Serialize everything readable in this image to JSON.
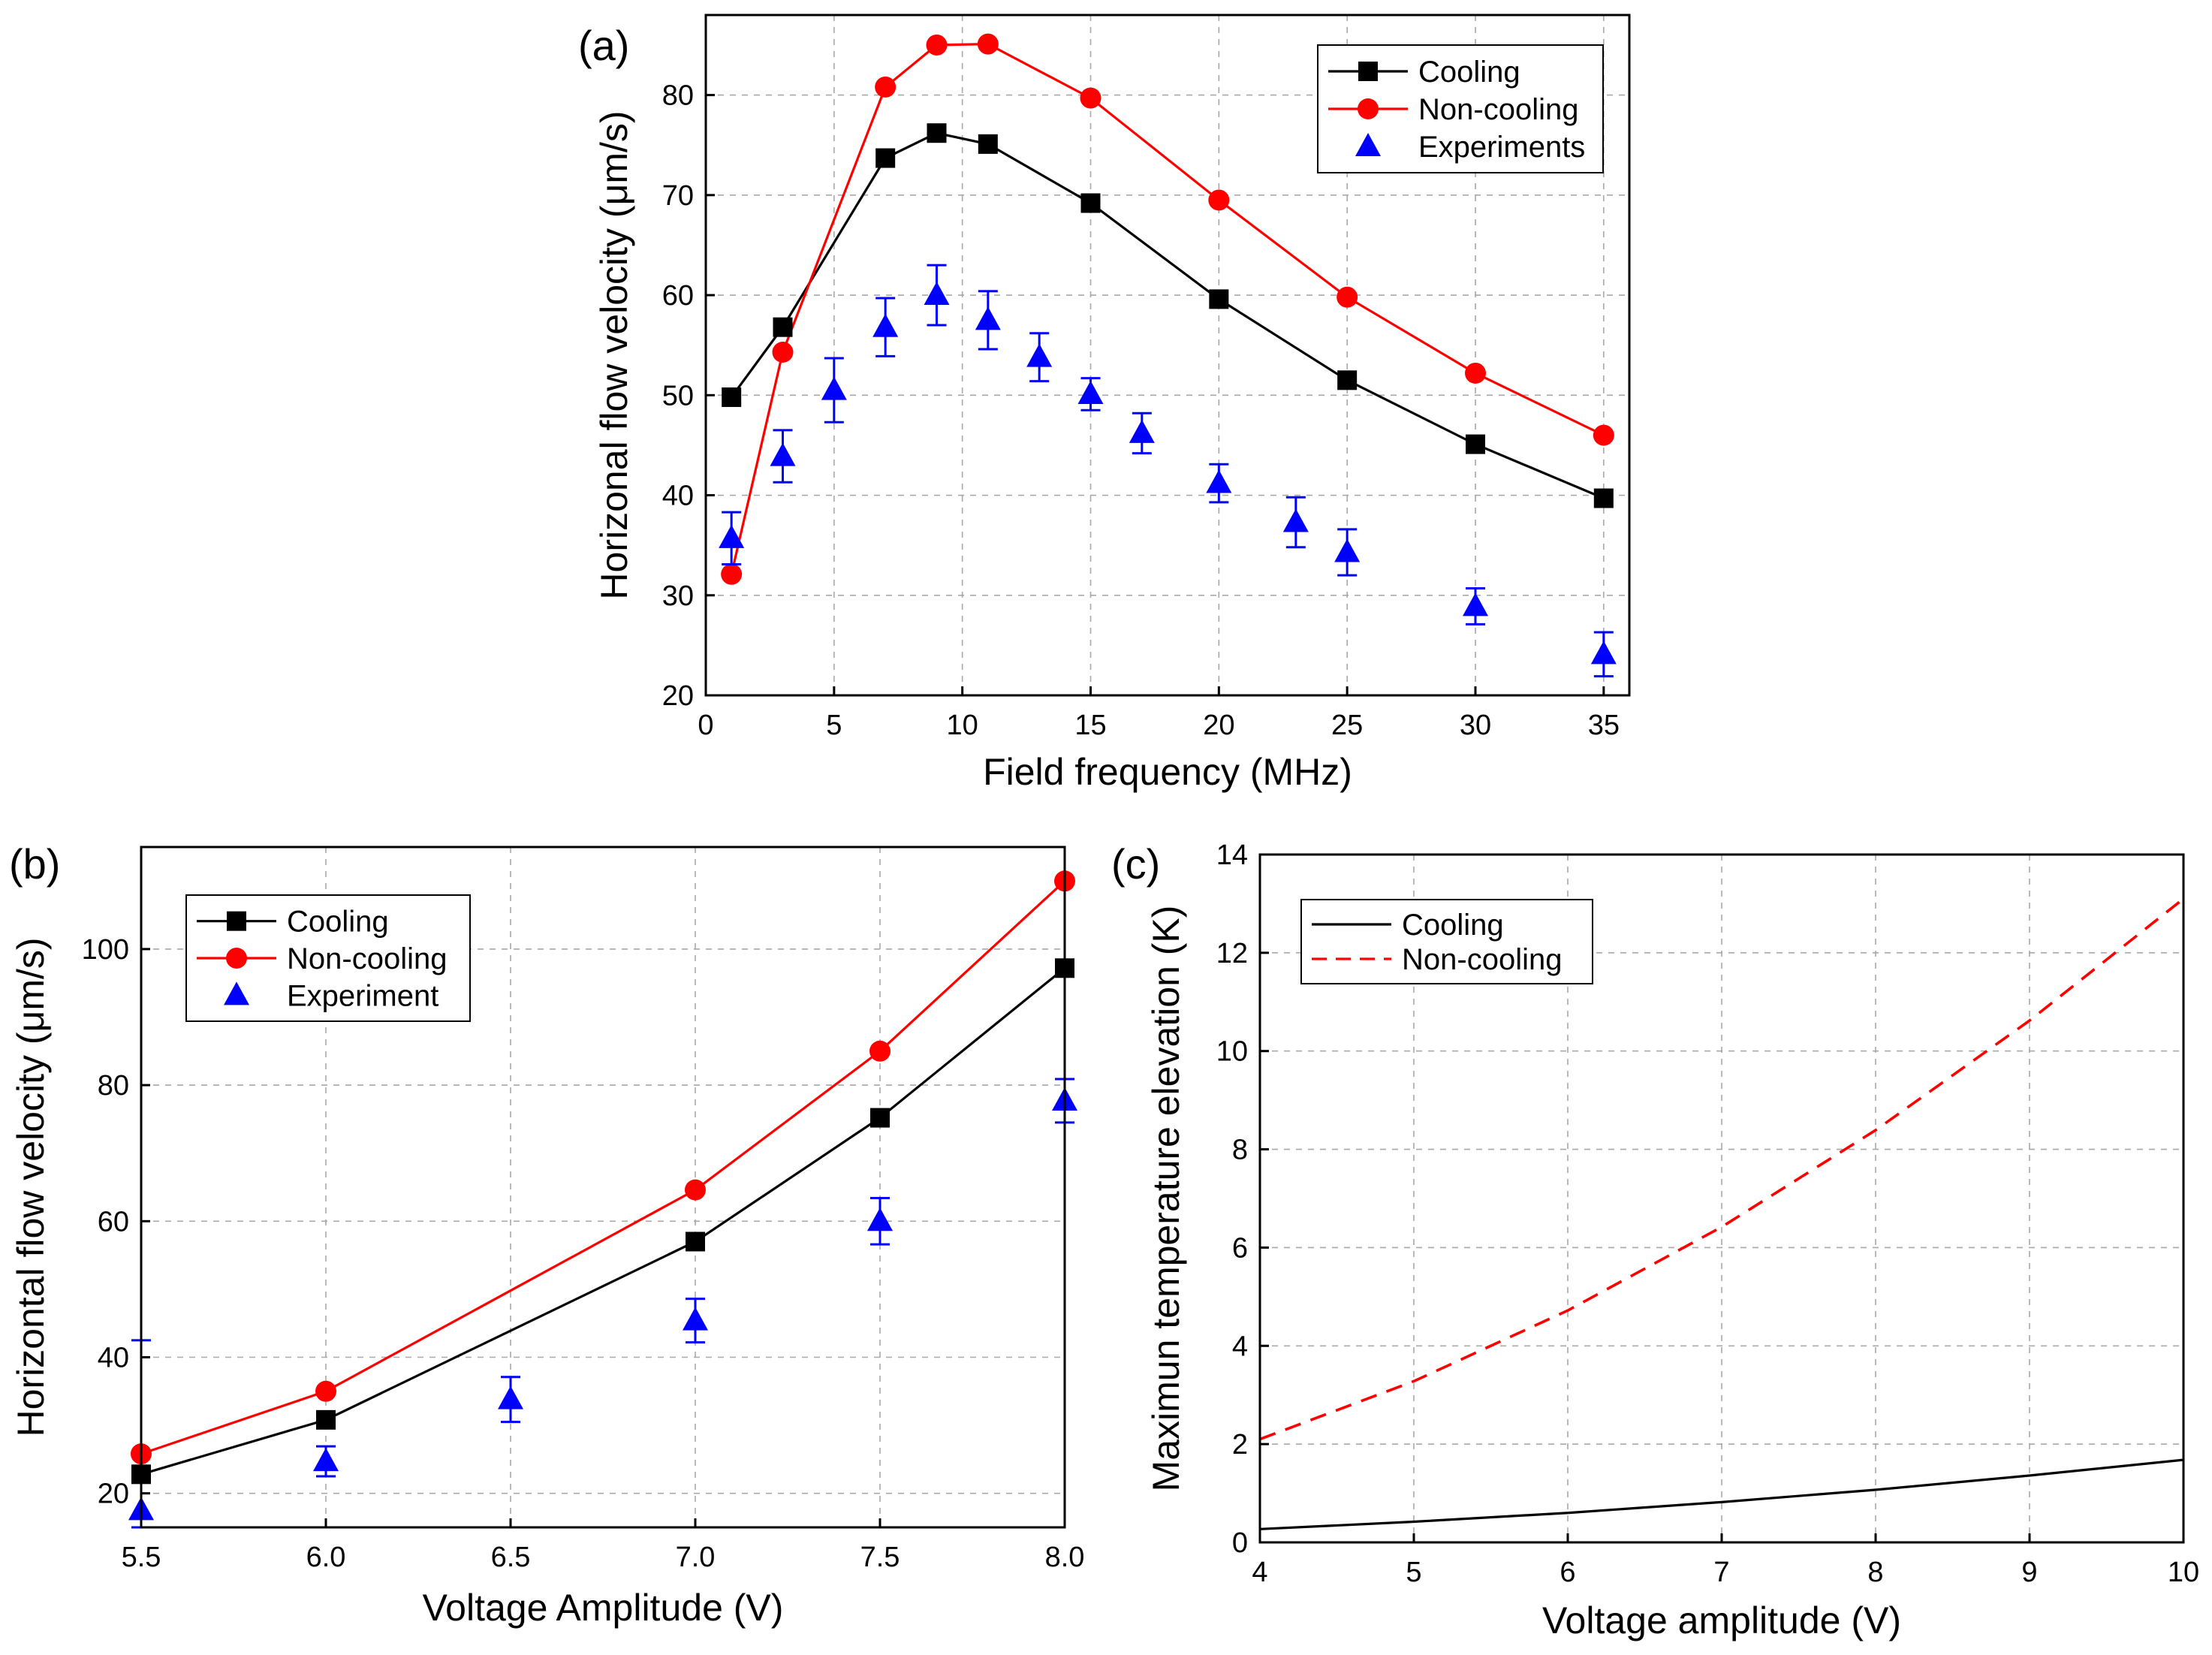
{
  "chart_data": [
    {
      "panel": "(a)",
      "type": "line",
      "xlabel": "Field frequency (MHz)",
      "ylabel": "Horizonal flow velocity (μm/s)",
      "xlim": [
        0,
        36
      ],
      "ylim": [
        20,
        88
      ],
      "xticks": [
        0,
        5,
        10,
        15,
        20,
        25,
        30,
        35
      ],
      "yticks": [
        20,
        30,
        40,
        50,
        60,
        70,
        80
      ],
      "grid": true,
      "legend": "top-right",
      "series": [
        {
          "name": "Cooling",
          "color": "#000000",
          "marker": "square",
          "line": "solid",
          "x": [
            1,
            3,
            7,
            9,
            11,
            15,
            20,
            25,
            30,
            35
          ],
          "y": [
            49.8,
            56.8,
            73.7,
            76.2,
            75.1,
            69.2,
            59.6,
            51.5,
            45.1,
            39.7
          ]
        },
        {
          "name": "Non-cooling",
          "color": "#ff0000",
          "marker": "circle",
          "line": "solid",
          "x": [
            1,
            3,
            7,
            9,
            11,
            15,
            20,
            25,
            30,
            35
          ],
          "y": [
            32.1,
            54.3,
            80.8,
            85.0,
            85.1,
            79.7,
            69.5,
            59.8,
            52.2,
            46.0
          ]
        },
        {
          "name": "Experiments",
          "color": "#0000ff",
          "marker": "triangle",
          "line": "none",
          "x": [
            1,
            3,
            5,
            7,
            9,
            11,
            13,
            15,
            17,
            20,
            23,
            25,
            30,
            35
          ],
          "y": [
            35.7,
            43.9,
            50.5,
            56.8,
            60.0,
            57.5,
            53.8,
            50.1,
            46.2,
            41.2,
            37.3,
            34.3,
            28.9,
            24.1
          ],
          "err": [
            2.6,
            2.6,
            3.2,
            2.9,
            3.0,
            2.9,
            2.4,
            1.6,
            2.0,
            1.9,
            2.5,
            2.3,
            1.8,
            2.2
          ]
        }
      ]
    },
    {
      "panel": "(b)",
      "type": "line",
      "xlabel": "Voltage Amplitude (V)",
      "ylabel": "Horizontal flow velocity (μm/s)",
      "xlim": [
        5.5,
        8.0
      ],
      "ylim": [
        15,
        115
      ],
      "xticks": [
        5.5,
        6.0,
        6.5,
        7.0,
        7.5,
        8.0
      ],
      "xtick_labels": [
        "5.5",
        "6.0",
        "6.5",
        "7.0",
        "7.5",
        "8.0"
      ],
      "yticks": [
        20,
        40,
        60,
        80,
        100
      ],
      "grid": true,
      "legend": "top-left",
      "series": [
        {
          "name": "Cooling",
          "color": "#000000",
          "marker": "square",
          "line": "solid",
          "x": [
            5.5,
            6.0,
            7.0,
            7.5,
            8.0
          ],
          "y": [
            22.8,
            30.8,
            57.0,
            75.2,
            97.2
          ]
        },
        {
          "name": "Non-cooling",
          "color": "#ff0000",
          "marker": "circle",
          "line": "solid",
          "x": [
            5.5,
            6.0,
            7.0,
            7.5,
            8.0
          ],
          "y": [
            25.8,
            35.0,
            64.6,
            85.0,
            110.0
          ]
        },
        {
          "name": "Experiment",
          "color": "#0000ff",
          "marker": "triangle",
          "line": "none",
          "x": [
            5.5,
            6.0,
            6.5,
            7.0,
            7.5,
            8.0
          ],
          "y": [
            17.5,
            24.7,
            33.8,
            45.4,
            60.0,
            77.7
          ],
          "err": [
            25.0,
            2.2,
            3.3,
            3.2,
            3.4,
            3.2
          ]
        }
      ]
    },
    {
      "panel": "(c)",
      "type": "line",
      "xlabel": "Voltage amplitude (V)",
      "ylabel": "Maximun temperature elevation (K)",
      "xlim": [
        4,
        10
      ],
      "ylim": [
        0,
        14
      ],
      "xticks": [
        4,
        5,
        6,
        7,
        8,
        9,
        10
      ],
      "yticks": [
        0,
        2,
        4,
        6,
        8,
        10,
        12,
        14
      ],
      "grid": true,
      "legend": "top-left",
      "series": [
        {
          "name": "Cooling",
          "color": "#000000",
          "line": "solid",
          "x": [
            4,
            5,
            6,
            7,
            8,
            9,
            10
          ],
          "y": [
            0.27,
            0.42,
            0.6,
            0.82,
            1.07,
            1.36,
            1.68
          ]
        },
        {
          "name": "Non-cooling",
          "color": "#ff0000",
          "line": "dashed",
          "x": [
            4,
            5,
            6,
            7,
            8,
            9,
            10
          ],
          "y": [
            2.1,
            3.28,
            4.72,
            6.42,
            8.39,
            10.62,
            13.1
          ]
        }
      ]
    }
  ]
}
